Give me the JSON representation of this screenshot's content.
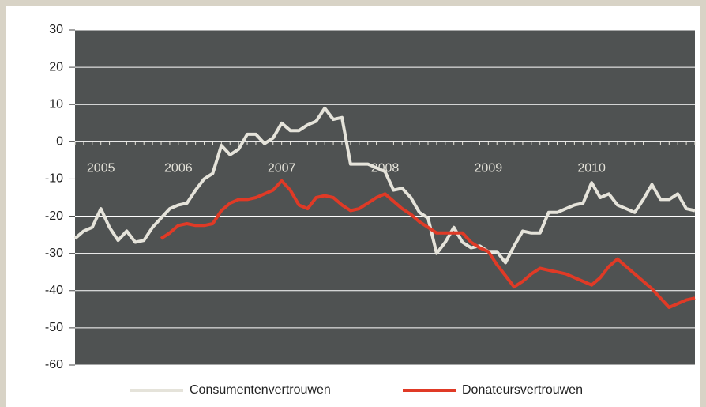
{
  "chart_data": {
    "type": "line",
    "categories": [
      null,
      null,
      null,
      "2005",
      null,
      null,
      null,
      null,
      null,
      null,
      null,
      null,
      "2006",
      null,
      null,
      null,
      null,
      null,
      null,
      null,
      null,
      null,
      null,
      null,
      "2007",
      null,
      null,
      null,
      null,
      null,
      null,
      null,
      null,
      null,
      null,
      null,
      "2008",
      null,
      null,
      null,
      null,
      null,
      null,
      null,
      null,
      null,
      null,
      null,
      "2009",
      null,
      null,
      null,
      null,
      null,
      null,
      null,
      null,
      null,
      null,
      null,
      "2010",
      null,
      null,
      null,
      null,
      null,
      null,
      null,
      null,
      null,
      null,
      null,
      null
    ],
    "series": [
      {
        "name": "Consumentenvertrouwen",
        "color": "#e5e3da",
        "values": [
          -26,
          -24,
          -23,
          -18,
          -23,
          -26.5,
          -24,
          -27,
          -26.5,
          -23,
          -20.5,
          -18,
          -17,
          -16.5,
          -13,
          -10,
          -8.5,
          -1,
          -3.5,
          -2,
          2,
          2,
          -0.5,
          1,
          5,
          3,
          3,
          4.5,
          5.5,
          9,
          6,
          6.5,
          -6,
          -6,
          -6,
          -7,
          -8,
          -13,
          -12.5,
          -15,
          -19,
          -20.5,
          -30,
          -27,
          -23,
          -27,
          -28.5,
          -28,
          -29.5,
          -29.5,
          -32.5,
          -28,
          -24,
          -24.5,
          -24.5,
          -19,
          -19,
          -18,
          -17,
          -16.5,
          -11,
          -15,
          -14,
          -17,
          -18,
          -19,
          -15.5,
          -11.5,
          -15.5,
          -15.5,
          -14,
          -18,
          -18.5
        ]
      },
      {
        "name": "Donateursvertrouwen",
        "color": "#e03a26",
        "values": [
          null,
          null,
          null,
          null,
          null,
          null,
          null,
          null,
          null,
          null,
          -26,
          -24.5,
          -22.5,
          -22,
          -22.5,
          -22.5,
          -22,
          -18.5,
          -16.5,
          -15.5,
          -15.5,
          -15,
          -14,
          -13,
          -10.5,
          -13,
          -17,
          -18,
          -15,
          -14.5,
          -15,
          -17,
          -18.5,
          -18,
          -16.5,
          -15,
          -14,
          -16,
          -18,
          -19.5,
          -21.5,
          -23,
          -24.5,
          -24.5,
          -24.5,
          -24.5,
          -27,
          -28.5,
          -29.5,
          -33,
          -36,
          -39,
          -37.5,
          -35.5,
          -34,
          -34.5,
          -35,
          -35.5,
          -36.5,
          -37.5,
          -38.5,
          -36.5,
          -33.5,
          -31.5,
          -33.5,
          -35.5,
          -37.5,
          -39.5,
          -42,
          -44.5,
          -43.5,
          -42.5,
          -42
        ]
      }
    ],
    "ylim": [
      -60,
      30
    ],
    "yticks": [
      -60,
      -50,
      -40,
      -30,
      -20,
      -10,
      0,
      10,
      20,
      30
    ],
    "grid": true
  }
}
